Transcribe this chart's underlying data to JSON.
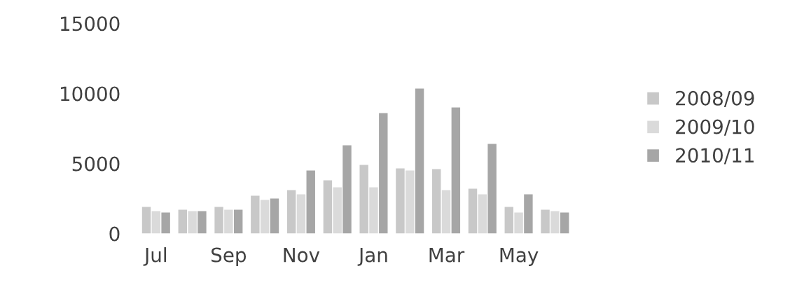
{
  "chart_data": {
    "type": "bar",
    "categories": [
      "Jul",
      null,
      "Sep",
      null,
      "Nov",
      null,
      "Jan",
      null,
      "Mar",
      null,
      "May",
      null
    ],
    "series": [
      {
        "name": "2008/09",
        "color": "#c8c8c8",
        "values": [
          1900,
          1700,
          1900,
          2700,
          3100,
          3800,
          4900,
          4650,
          4600,
          3200,
          1900,
          1700
        ]
      },
      {
        "name": "2009/10",
        "color": "#dadada",
        "values": [
          1600,
          1600,
          1700,
          2400,
          2800,
          3300,
          3300,
          4500,
          3100,
          2800,
          1500,
          1600
        ]
      },
      {
        "name": "2010/11",
        "color": "#a6a6a6",
        "values": [
          1500,
          1600,
          1700,
          2500,
          4500,
          6300,
          8600,
          10350,
          9000,
          6400,
          2800,
          1500
        ]
      }
    ],
    "ylim": [
      0,
      15000
    ],
    "yticks": [
      0,
      5000,
      10000,
      15000
    ],
    "grid": false,
    "legend": "right"
  }
}
